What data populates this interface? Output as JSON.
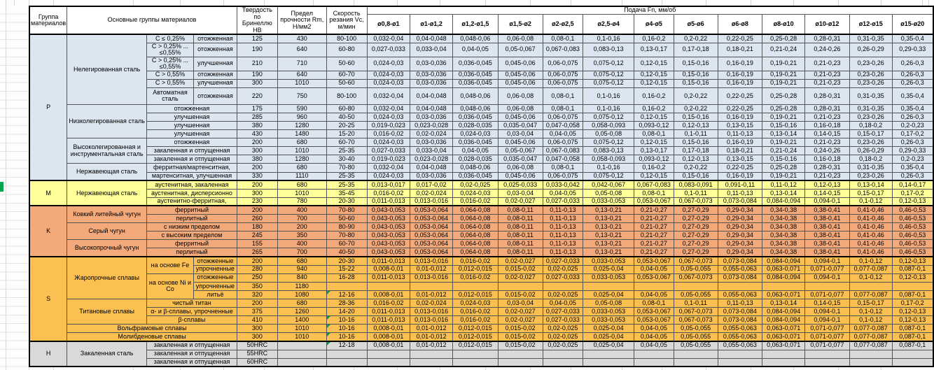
{
  "colors": {
    "group_p": "#dce6f1",
    "group_m": "#ffff99",
    "group_k": "#f4a97a",
    "group_s": "#fcc052",
    "group_h": "#d9d9d9",
    "comment_indicator": "#00A14E",
    "margin_marker": "#00A550",
    "grid_border": "#545454"
  },
  "table": {
    "headers": {
      "group": "Группа материалов",
      "material": "Основные группы материалов",
      "hardness": "Твердость по Бринеллю НВ",
      "strength": "Предел прочности Rm, Н/мм2",
      "speed": "Скорость резания Vc, м/мин",
      "feed": "Подача Fn, мм/об"
    },
    "diameters": [
      "ø0,8-ø1",
      "ø1-ø1,2",
      "ø1,2-ø1,5",
      "ø1,5-ø2",
      "ø2-ø2,5",
      "ø2,5-ø4",
      "ø4-ø5",
      "ø5-ø6",
      "ø6-ø8",
      "ø8-ø10",
      "ø10-ø12",
      "ø12-ø15",
      "ø15-ø20"
    ],
    "feed_patterns": {
      "A": [
        "0,032-0,04",
        "0,04-0,048",
        "0,048-0,06",
        "0,06-0,08",
        "0,08-0,1",
        "0,1-0,16",
        "0,16-0,2",
        "0,2-0,22",
        "0,22-0,25",
        "0,25-0,28",
        "0,28-0,31",
        "0,31-0,35",
        "0,35-0,4"
      ],
      "B": [
        "0,027-0,033",
        "0,033-0,04",
        "0,04-0,05",
        "0,05-0,067",
        "0,067-0,083",
        "0,083-0,13",
        "0,13-0,17",
        "0,17-0,18",
        "0,18-0,21",
        "0,21-0,24",
        "0,24-0,26",
        "0,26-0,29",
        "0,29-0,33"
      ],
      "C": [
        "0,024-0,03",
        "0,03-0,036",
        "0,036-0,045",
        "0,045-0,06",
        "0,06-0,075",
        "0,075-0,12",
        "0,12-0,15",
        "0,15-0,16",
        "0,16-0,19",
        "0,19-0,21",
        "0,21-0,23",
        "0,23-0,26",
        "0,26-0,3"
      ],
      "D": [
        "0,019-0,023",
        "0,023-0,028",
        "0,028-0,035",
        "0,035-0,047",
        "0,047-0,058",
        "0,058-0,093",
        "0,093-0,12",
        "0,12-0,13",
        "0,13-0,15",
        "0,15-0,16",
        "0,16-0,18",
        "0,18-0,2",
        "0,2-0,23"
      ],
      "E": [
        "0,016-0,02",
        "0,02-0,024",
        "0,024-0,03",
        "0,03-0,04",
        "0,04-0,05",
        "0,05-0,08",
        "0,08-0,1",
        "0,1-0,11",
        "0,11-0,13",
        "0,13-0,14",
        "0,14-0,15",
        "0,15-0,17",
        "0,17-0,2"
      ],
      "F": [
        "0,013-0,017",
        "0,017-0,02",
        "0,02-0,025",
        "0,025-0,033",
        "0,033-0,042",
        "0,042-0,067",
        "0,067-0,083",
        "0,083-0,091",
        "0,091-0,11",
        "0,11-0,12",
        "0,12-0,13",
        "0,13-0,14",
        "0,14-0,17"
      ],
      "G": [
        "0,011-0,013",
        "0,013-0,016",
        "0,016-0,02",
        "0,02-0,027",
        "0,027-0,033",
        "0,033-0,053",
        "0,053-0,067",
        "0,067-0,073",
        "0,073-0,084",
        "0,084-0,094",
        "0,094-0,1",
        "0,1-0,12",
        "0,12-0,13"
      ],
      "H": [
        "0,043-0,053",
        "0,053-0,064",
        "0,064-0,08",
        "0,08-0,11",
        "0,11-0,13",
        "0,13-0,21",
        "0,21-0,27",
        "0,27-0,29",
        "0,29-0,34",
        "0,34-0,38",
        "0,38-0,41",
        "0,41-0,46",
        "0,46-0,53"
      ],
      "I": [
        "0,008-0,01",
        "0,01-0,012",
        "0,012-0,015",
        "0,015-0,02",
        "0,02-0,025",
        "0,025-0,04",
        "0,04-0,05",
        "0,05-0,055",
        "0,055-0,063",
        "0,063-0,071",
        "0,071-0,077",
        "0,077-0,087",
        "0,087-0,1"
      ],
      "EMPTY": [
        "",
        "",
        "",
        "",
        "",
        "",
        "",
        "",
        "",
        "",
        "",
        "",
        ""
      ]
    },
    "groups": [
      {
        "key": "p",
        "letter": "P",
        "color": "#dce6f1",
        "rows": [
          {
            "name": [
              {
                "t": "Нелегированная сталь",
                "rs": 6
              },
              {
                "t": "C ≤ 0,25%"
              },
              {
                "t": "отожженная"
              }
            ],
            "hb": "125",
            "rm": "430",
            "vc": "80-100",
            "feed": "A"
          },
          {
            "h": 19,
            "name": [
              {
                "t": "C > 0,25% ... ≤0,55%"
              },
              {
                "t": "отожженная"
              }
            ],
            "hb": "190",
            "rm": "640",
            "vc": "60-80",
            "feed": "B"
          },
          {
            "h": 19,
            "name": [
              {
                "t": "C > 0,25% ... ≤0,55%"
              },
              {
                "t": "улучшенная"
              }
            ],
            "hb": "210",
            "rm": "710",
            "vc": "50-60",
            "feed": "C"
          },
          {
            "name": [
              {
                "t": "C > 0,55%"
              },
              {
                "t": "отожженная"
              }
            ],
            "hb": "190",
            "rm": "640",
            "vc": "60-70",
            "feed": "C"
          },
          {
            "name": [
              {
                "t": "C > 0,55%"
              },
              {
                "t": "улучшенная"
              }
            ],
            "hb": "300",
            "rm": "1010",
            "vc": "50-60",
            "feed": "C"
          },
          {
            "h": 24,
            "name": [
              {
                "t": "Автоматная сталь"
              },
              {
                "t": "отожженная"
              }
            ],
            "hb": "220",
            "rm": "750",
            "vc": "80-100",
            "feed": "A"
          },
          {
            "name": [
              {
                "t": "Низколегированная сталь",
                "rs": 4
              },
              {
                "t": "отожженная",
                "cs": 2
              }
            ],
            "hb": "175",
            "rm": "590",
            "vc": "60-80",
            "feed": "A"
          },
          {
            "name": [
              {
                "t": "улучшенная",
                "cs": 2
              }
            ],
            "hb": "285",
            "rm": "960",
            "vc": "40-50",
            "feed": "C"
          },
          {
            "name": [
              {
                "t": "улучшенная",
                "cs": 2
              }
            ],
            "hb": "380",
            "rm": "1280",
            "vc": "20-25",
            "feed": "D"
          },
          {
            "name": [
              {
                "t": "улучшенная",
                "cs": 2
              }
            ],
            "hb": "430",
            "rm": "1480",
            "vc": "15-20",
            "feed": "E"
          },
          {
            "name": [
              {
                "t": "Высоколегированная и инструментальная сталь",
                "rs": 3
              },
              {
                "t": "отожженная",
                "cs": 2
              }
            ],
            "hb": "200",
            "rm": "680",
            "vc": "60-70",
            "feed": "C"
          },
          {
            "name": [
              {
                "t": "закаленная и отпущенная",
                "cs": 2
              }
            ],
            "hb": "300",
            "rm": "1010",
            "vc": "25-35",
            "feed": "B"
          },
          {
            "name": [
              {
                "t": "закаленная и отпущенная",
                "cs": 2
              }
            ],
            "hb": "380",
            "rm": "1280",
            "vc": "30-40",
            "feed": "D"
          },
          {
            "name": [
              {
                "t": "Нержавеющая сталь",
                "rs": 2
              },
              {
                "t": "ферритная/мартенситная,",
                "cs": 2
              }
            ],
            "hb": "200",
            "rm": "680",
            "vc": "70-80",
            "feed": "A"
          },
          {
            "name": [
              {
                "t": "мартенситная, улучшенная",
                "cs": 2
              }
            ],
            "hb": "330",
            "rm": "1110",
            "vc": "25-35",
            "feed": "C"
          }
        ]
      },
      {
        "key": "m",
        "letter": "M",
        "color": "#ffff99",
        "rows": [
          {
            "name": [
              {
                "t": "Нержавеющая сталь",
                "rs": 3
              },
              {
                "t": "аустенитная, закаленная",
                "cs": 2
              }
            ],
            "hb": "200",
            "rm": "680",
            "vc": "25-35",
            "feed": "F"
          },
          {
            "name": [
              {
                "t": "аустенитная, дисперсионно",
                "cs": 2
              }
            ],
            "hb": "300",
            "rm": "1010",
            "vc": "35-45",
            "feed": "E"
          },
          {
            "name": [
              {
                "t": "аустенитно-ферритная,",
                "cs": 2
              }
            ],
            "hb": "230",
            "rm": "780",
            "vc": "20-30",
            "feed": "G"
          }
        ]
      },
      {
        "key": "k",
        "letter": "K",
        "color": "#f4a97a",
        "rows": [
          {
            "name": [
              {
                "t": "Ковкий литейный чугун",
                "rs": 2
              },
              {
                "t": "ферритный",
                "cs": 2
              }
            ],
            "hb": "200",
            "rm": "400",
            "vc": "70-80",
            "feed": "H"
          },
          {
            "name": [
              {
                "t": "перлитный",
                "cs": 2
              }
            ],
            "hb": "260",
            "rm": "700",
            "vc": "50-60",
            "feed": "H"
          },
          {
            "name": [
              {
                "t": "Серый чугун",
                "rs": 2
              },
              {
                "t": "с низким пределом",
                "cs": 2
              }
            ],
            "hb": "180",
            "rm": "200",
            "vc": "80-90",
            "feed": "H"
          },
          {
            "name": [
              {
                "t": "с высоким пределом",
                "cs": 2
              }
            ],
            "hb": "245",
            "rm": "350",
            "vc": "70-80",
            "feed": "H"
          },
          {
            "name": [
              {
                "t": "Высокопрочный чугун",
                "rs": 2
              },
              {
                "t": "ферритный",
                "cs": 2
              }
            ],
            "hb": "155",
            "rm": "400",
            "vc": "60-70",
            "feed": "H"
          },
          {
            "name": [
              {
                "t": "перлитный",
                "cs": 2
              }
            ],
            "hb": "265",
            "rm": "700",
            "vc": "40-50",
            "feed": "H"
          }
        ]
      },
      {
        "key": "s",
        "letter": "S",
        "color": "#fcc052",
        "rows": [
          {
            "name": [
              {
                "t": "Жаропрочные сплавы",
                "rs": 5
              },
              {
                "t": "на основе Fe",
                "rs": 2
              },
              {
                "t": "отожженные"
              }
            ],
            "hb": "200",
            "rm": "680",
            "vc": "20-30",
            "feed": "G"
          },
          {
            "name": [
              {
                "t": "упрочненные"
              }
            ],
            "hb": "280",
            "rm": "940",
            "vc": "15-22",
            "feed": "I"
          },
          {
            "name": [
              {
                "t": "на основе Ni и Co",
                "rs": 3
              },
              {
                "t": "отожженные"
              }
            ],
            "hb": "250",
            "rm": "840",
            "vc": "16-28",
            "feed": "G"
          },
          {
            "name": [
              {
                "t": "упрочненные"
              }
            ],
            "hb": "350",
            "rm": "1180",
            "vc": "",
            "feed": "EMPTY"
          },
          {
            "name": [
              {
                "t": "литьё"
              }
            ],
            "hb": "320",
            "rm": "1080",
            "vc": "12-16",
            "note": true,
            "feed": "I"
          },
          {
            "name": [
              {
                "t": "Титановые сплавы",
                "rs": 3
              },
              {
                "t": "чистый титан",
                "cs": 2
              }
            ],
            "hb": "200",
            "rm": "680",
            "vc": "28-36",
            "feed": "E"
          },
          {
            "name": [
              {
                "t": "α- и β-сплавы, упрочненные",
                "cs": 2
              }
            ],
            "hb": "375",
            "rm": "1260",
            "vc": "14-20",
            "feed": "G"
          },
          {
            "name": [
              {
                "t": "β-сплавы",
                "cs": 2
              }
            ],
            "hb": "410",
            "rm": "1400",
            "vc": "10-16",
            "note": true,
            "feed": "G"
          },
          {
            "name": [
              {
                "t": "Вольфрамовые сплавы",
                "cs": 3
              }
            ],
            "hb": "300",
            "rm": "1010",
            "vc": "10-16",
            "note": true,
            "feed": "I"
          },
          {
            "name": [
              {
                "t": "Молибденовые сплавы",
                "cs": 3
              }
            ],
            "hb": "300",
            "rm": "1010",
            "vc": "10-16",
            "note": true,
            "feed": "I"
          }
        ]
      },
      {
        "key": "h",
        "letter": "H",
        "color": "#d9d9d9",
        "rows": [
          {
            "name": [
              {
                "t": "Закаленная сталь",
                "rs": 3
              },
              {
                "t": "закаленная и отпущенная",
                "cs": 2
              }
            ],
            "hb": "50HRC",
            "rm": "",
            "vc": "12-18",
            "note": true,
            "feed": "I"
          },
          {
            "name": [
              {
                "t": "закаленная и отпущенная",
                "cs": 2
              }
            ],
            "hb": "55HRC",
            "rm": "",
            "vc": "",
            "feed": "EMPTY"
          },
          {
            "name": [
              {
                "t": "закаленная и отпущенная",
                "cs": 2
              }
            ],
            "hb": "60HRC",
            "rm": "",
            "vc": "",
            "feed": "EMPTY"
          }
        ]
      }
    ]
  }
}
